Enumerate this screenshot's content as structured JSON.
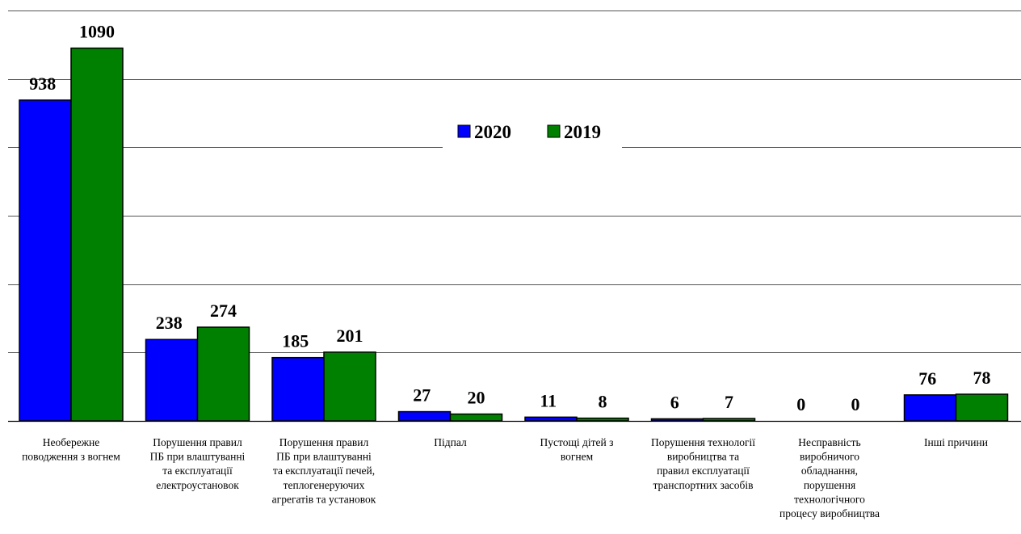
{
  "chart_data": {
    "type": "bar",
    "title": "",
    "xlabel": "",
    "ylabel": "",
    "ylim": [
      0,
      1200
    ],
    "grid": true,
    "legend": "center",
    "categories": [
      [
        "Необережне",
        "поводження з вогнем"
      ],
      [
        "Порушення правил",
        "ПБ при влаштуванні",
        "та експлуатації",
        "електроустановок"
      ],
      [
        "Порушення правил",
        "ПБ при влаштуванні",
        "та експлуатації печей,",
        "теплогенеруючих",
        "агрегатів та установок"
      ],
      [
        "Підпал"
      ],
      [
        "Пустощі дітей з",
        "вогнем"
      ],
      [
        "Порушення технології",
        "виробництва та",
        "правил експлуатації",
        "транспортних засобів"
      ],
      [
        "Несправність",
        "виробничого",
        "обладнання,",
        "порушення",
        "технологічного",
        "процесу виробництва"
      ],
      [
        "Інші причини"
      ]
    ],
    "series": [
      {
        "name": "2020",
        "color": "#0000FF",
        "values": [
          938,
          238,
          185,
          27,
          11,
          6,
          0,
          76
        ]
      },
      {
        "name": "2019",
        "color": "#008000",
        "values": [
          1090,
          274,
          201,
          20,
          8,
          7,
          0,
          78
        ]
      }
    ]
  }
}
